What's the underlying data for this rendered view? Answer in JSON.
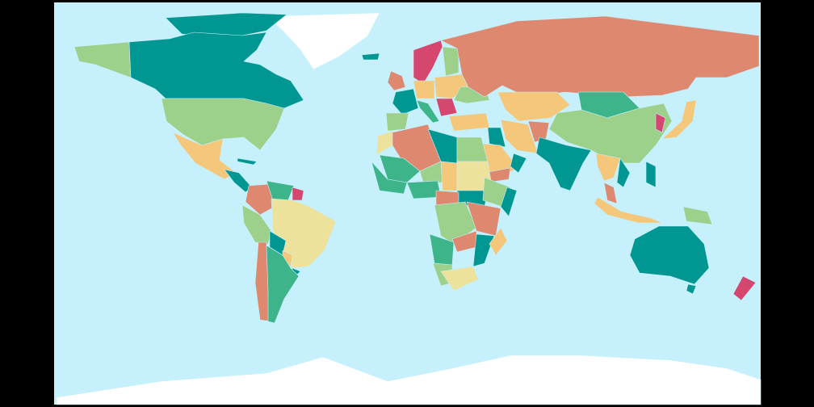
{
  "map": {
    "background": "#000000",
    "ocean": "#c6f0fc",
    "ice": "#ffffff",
    "palette": {
      "teal": "#009692",
      "green": "#3db48a",
      "light_green": "#9dd08a",
      "yellow": "#f5c77a",
      "pale_yellow": "#ede29c",
      "salmon": "#de8870",
      "pink": "#d6476f"
    },
    "region_colors": {
      "arctic_islands": "teal",
      "canada": "teal",
      "alaska": "light_green",
      "usa": "light_green",
      "mexico": "yellow",
      "central_america": "teal",
      "cuba": "teal",
      "colombia": "salmon",
      "venezuela": "green",
      "guiana": "pink",
      "brazil": "pale_yellow",
      "peru": "light_green",
      "bolivia": "teal",
      "chile": "salmon",
      "argentina": "green",
      "paraguay": "yellow",
      "uruguay": "teal",
      "scandinavia": "pink",
      "finland": "light_green",
      "britain": "salmon",
      "france": "teal",
      "spain": "light_green",
      "germany": "yellow",
      "italy": "green",
      "east_europe": "yellow",
      "balkans": "pink",
      "ukraine": "light_green",
      "russia": "salmon",
      "kazakhstan": "yellow",
      "mongolia": "green",
      "china": "light_green",
      "india": "teal",
      "saudi": "yellow",
      "iran": "yellow",
      "afghanistan": "salmon",
      "turkey": "yellow",
      "iraq": "teal",
      "oman": "teal",
      "yemen": "salmon",
      "algeria": "salmon",
      "morocco": "pale_yellow",
      "libya": "teal",
      "egypt": "light_green",
      "mali": "green",
      "niger": "light_green",
      "west_africa": "green",
      "nigeria": "green",
      "chad": "yellow",
      "sudan": "pale_yellow",
      "south_sudan": "teal",
      "ethiopia": "light_green",
      "somalia": "teal",
      "car": "salmon",
      "drc": "light_green",
      "east_africa": "salmon",
      "angola": "green",
      "zambia": "salmon",
      "mozambique": "teal",
      "namibia": "light_green",
      "south_africa": "pale_yellow",
      "madagascar": "yellow",
      "indochina": "yellow",
      "vietnam": "teal",
      "malaysia": "salmon",
      "indonesia": "yellow",
      "new_guinea": "light_green",
      "philippines": "teal",
      "japan": "yellow",
      "korea": "pink",
      "australia": "teal",
      "tasmania": "teal",
      "new_zealand": "pink",
      "greenland": "ice",
      "antarctica": "ice",
      "iceland": "teal"
    }
  }
}
